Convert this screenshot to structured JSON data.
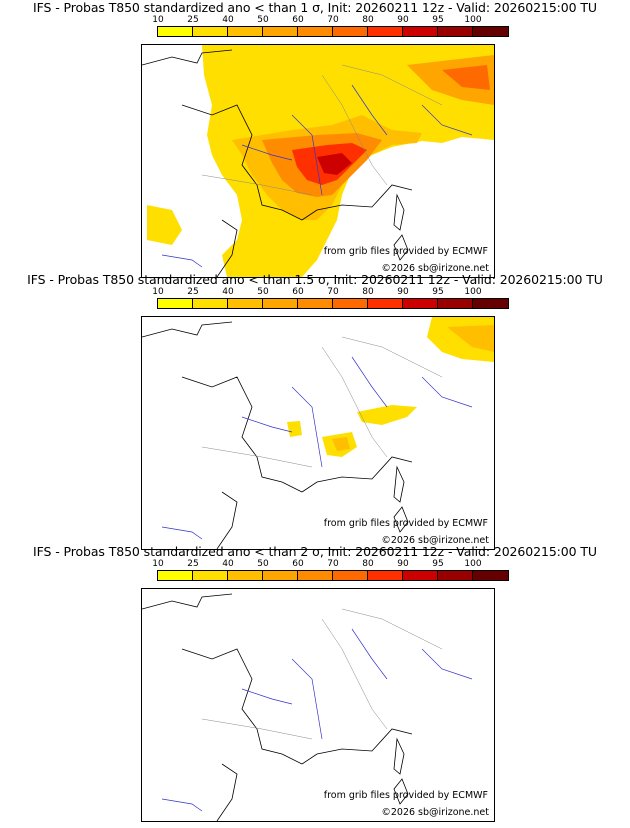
{
  "colorbar": {
    "labels": [
      "10",
      "25",
      "40",
      "50",
      "60",
      "70",
      "80",
      "90",
      "95",
      "100"
    ],
    "colors": [
      "#ffff00",
      "#ffdf00",
      "#ffbf00",
      "#ffa500",
      "#ff8c00",
      "#ff6a00",
      "#ff3000",
      "#cc0000",
      "#990000",
      "#660000"
    ]
  },
  "panels": [
    {
      "title": "IFS - Probas T850  standardized ano < than 1 σ, Init: 20260211 12z - Valid: 20260215:00 TU",
      "credit_line1": "from grib files provided by ECMWF",
      "credit_line2": "©2026 sb@irizone.net",
      "coverage": "high"
    },
    {
      "title": "IFS - Probas T850  standardized ano < than 1.5 σ, Init: 20260211 12z - Valid: 20260215:00 TU",
      "credit_line1": "from grib files provided by ECMWF",
      "credit_line2": "©2026 sb@irizone.net",
      "coverage": "low"
    },
    {
      "title": "IFS - Probas T850  standardized ano < than 2 σ, Init: 20260211 12z - Valid: 20260215:00 TU",
      "credit_line1": "from grib files provided by ECMWF",
      "credit_line2": "©2026 sb@irizone.net",
      "coverage": "none"
    }
  ]
}
